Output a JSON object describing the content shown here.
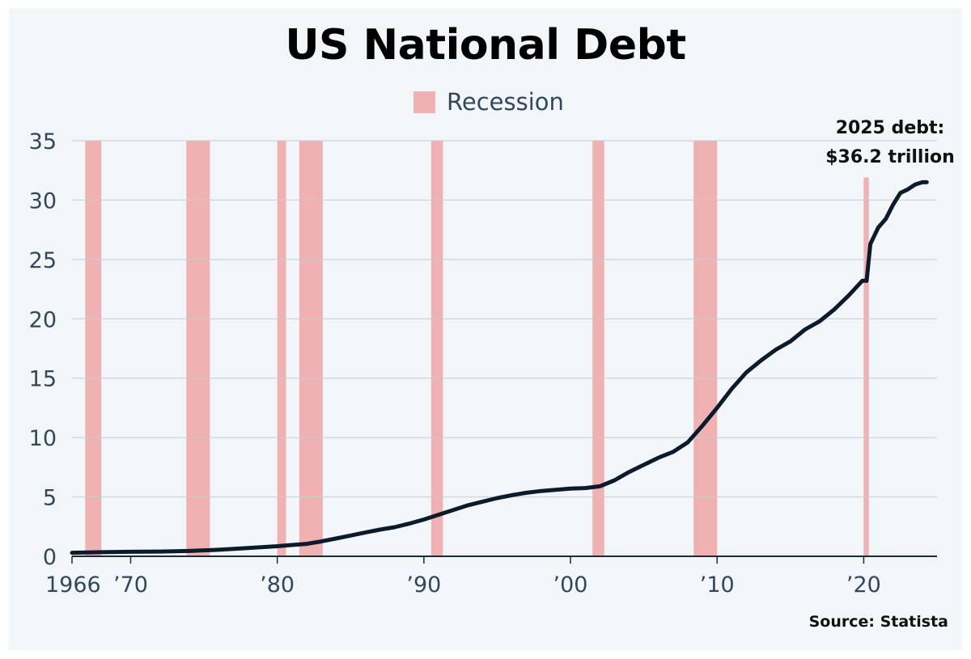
{
  "chart_data": {
    "type": "line",
    "title": "US National Debt",
    "xlabel": "",
    "ylabel": "",
    "xlim": [
      1966,
      2025
    ],
    "ylim": [
      0,
      35
    ],
    "y_ticks": [
      {
        "value": 0,
        "label": "0"
      },
      {
        "value": 5,
        "label": "5"
      },
      {
        "value": 10,
        "label": "10"
      },
      {
        "value": 15,
        "label": "15"
      },
      {
        "value": 20,
        "label": "20"
      },
      {
        "value": 25,
        "label": "25"
      },
      {
        "value": 30,
        "label": "30"
      },
      {
        "value": 35,
        "label": "35"
      }
    ],
    "x_ticks": [
      {
        "value": 1966,
        "label": "1966"
      },
      {
        "value": 1970,
        "label": "’70"
      },
      {
        "value": 1980,
        "label": "’80"
      },
      {
        "value": 1990,
        "label": "’90"
      },
      {
        "value": 2000,
        "label": "’00"
      },
      {
        "value": 2010,
        "label": "’10"
      },
      {
        "value": 2020,
        "label": "’20"
      }
    ],
    "grid": true,
    "legend": {
      "position": "top-center",
      "label": "Recession",
      "color": "#efb1b1"
    },
    "line_color": "#0c1b2b",
    "recessions": [
      {
        "start": 1966.9,
        "end": 1968.0
      },
      {
        "start": 1973.8,
        "end": 1975.4
      },
      {
        "start": 1980.0,
        "end": 1980.6
      },
      {
        "start": 1981.5,
        "end": 1983.1
      },
      {
        "start": 1990.5,
        "end": 1991.3
      },
      {
        "start": 2001.5,
        "end": 2002.3
      },
      {
        "start": 2008.4,
        "end": 2010.0
      },
      {
        "start": 2020.0,
        "end": 2020.35,
        "ymax": 31.9
      }
    ],
    "series": [
      {
        "points": [
          [
            1966.0,
            0.3
          ],
          [
            1967.0,
            0.32
          ],
          [
            1968.0,
            0.35
          ],
          [
            1970.0,
            0.38
          ],
          [
            1972.0,
            0.4
          ],
          [
            1974.0,
            0.45
          ],
          [
            1976.0,
            0.55
          ],
          [
            1978.0,
            0.7
          ],
          [
            1980.0,
            0.85
          ],
          [
            1981.0,
            0.95
          ],
          [
            1982.0,
            1.05
          ],
          [
            1983.0,
            1.25
          ],
          [
            1984.0,
            1.5
          ],
          [
            1985.0,
            1.75
          ],
          [
            1986.0,
            2.0
          ],
          [
            1987.0,
            2.25
          ],
          [
            1988.0,
            2.45
          ],
          [
            1989.0,
            2.75
          ],
          [
            1990.0,
            3.1
          ],
          [
            1991.0,
            3.5
          ],
          [
            1992.0,
            3.9
          ],
          [
            1993.0,
            4.3
          ],
          [
            1994.0,
            4.6
          ],
          [
            1995.0,
            4.9
          ],
          [
            1996.0,
            5.15
          ],
          [
            1997.0,
            5.35
          ],
          [
            1998.0,
            5.5
          ],
          [
            1999.0,
            5.6
          ],
          [
            2000.0,
            5.7
          ],
          [
            2001.0,
            5.75
          ],
          [
            2002.0,
            5.9
          ],
          [
            2003.0,
            6.4
          ],
          [
            2004.0,
            7.1
          ],
          [
            2005.0,
            7.7
          ],
          [
            2006.0,
            8.3
          ],
          [
            2007.0,
            8.8
          ],
          [
            2008.0,
            9.6
          ],
          [
            2009.0,
            11.0
          ],
          [
            2010.0,
            12.5
          ],
          [
            2011.0,
            14.1
          ],
          [
            2012.0,
            15.5
          ],
          [
            2013.0,
            16.5
          ],
          [
            2014.0,
            17.4
          ],
          [
            2015.0,
            18.1
          ],
          [
            2016.0,
            19.1
          ],
          [
            2017.0,
            19.8
          ],
          [
            2018.0,
            20.8
          ],
          [
            2019.0,
            22.0
          ],
          [
            2019.9,
            23.2
          ],
          [
            2020.2,
            23.2
          ],
          [
            2020.45,
            26.3
          ],
          [
            2021.0,
            27.7
          ],
          [
            2021.5,
            28.4
          ],
          [
            2022.0,
            29.6
          ],
          [
            2022.5,
            30.6
          ],
          [
            2023.0,
            30.9
          ],
          [
            2023.5,
            31.3
          ],
          [
            2024.0,
            31.5
          ],
          [
            2024.3,
            31.5
          ]
        ]
      }
    ],
    "annotations": [
      "2025 debt:",
      "$36.2 trillion"
    ]
  },
  "source": "Source: Statista"
}
